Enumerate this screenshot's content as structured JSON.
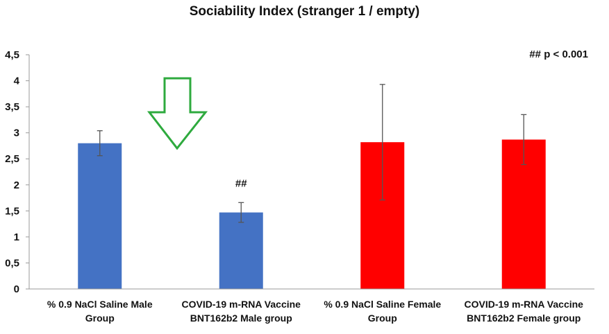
{
  "chart_data": {
    "type": "bar",
    "title": "Sociability Index (stranger 1 / empty)",
    "xlabel": "",
    "ylabel": "",
    "ylim": [
      0,
      4.5
    ],
    "yticks": [
      "0",
      "0,5",
      "1",
      "1,5",
      "2",
      "2,5",
      "3",
      "3,5",
      "4",
      "4,5"
    ],
    "categories": [
      [
        "% 0.9 NaCl Saline Male",
        "Group"
      ],
      [
        "COVID-19 m-RNA Vaccine",
        "BNT162b2 Male group"
      ],
      [
        "% 0.9 NaCl Saline Female",
        "Group"
      ],
      [
        "COVID-19 m-RNA Vaccine",
        "BNT162b2 Female group"
      ]
    ],
    "values": [
      2.8,
      1.47,
      2.82,
      2.87
    ],
    "errors": [
      0.24,
      0.19,
      1.11,
      0.48
    ],
    "bar_colors": [
      "#4472c4",
      "#4472c4",
      "#ff0000",
      "#ff0000"
    ],
    "bar_annotations": [
      "",
      "##",
      "",
      ""
    ],
    "legend_note": "## p < 0.001",
    "grid": false
  },
  "arrow": {
    "icon": "down-arrow-icon",
    "color": "#2eaa3e"
  }
}
